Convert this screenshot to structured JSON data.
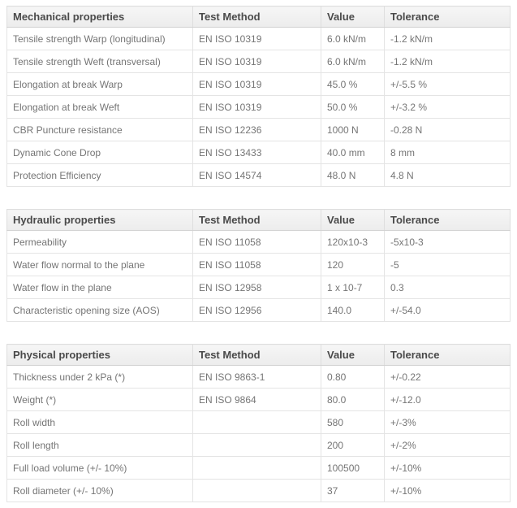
{
  "theme": {
    "page_bg": "#ffffff",
    "header_bg": "#f0f0f0",
    "header_text": "#4a4a4a",
    "body_text": "#757575",
    "border": "#e0e0e0"
  },
  "tables": [
    {
      "title": "Mechanical properties",
      "columns": [
        "Test Method",
        "Value",
        "Tolerance"
      ],
      "rows": [
        {
          "property": "Tensile strength Warp (longitudinal)",
          "method": "EN ISO 10319",
          "value": "6.0 kN/m",
          "tolerance": "-1.2 kN/m"
        },
        {
          "property": "Tensile strength Weft (transversal)",
          "method": "EN ISO 10319",
          "value": "6.0 kN/m",
          "tolerance": "-1.2 kN/m"
        },
        {
          "property": "Elongation at break Warp",
          "method": "EN ISO 10319",
          "value": "45.0 %",
          "tolerance": "+/-5.5 %"
        },
        {
          "property": "Elongation at break Weft",
          "method": "EN ISO 10319",
          "value": "50.0 %",
          "tolerance": "+/-3.2 %"
        },
        {
          "property": "CBR Puncture resistance",
          "method": "EN ISO 12236",
          "value": "1000 N",
          "tolerance": "-0.28 N"
        },
        {
          "property": "Dynamic Cone Drop",
          "method": "EN ISO 13433",
          "value": "40.0 mm",
          "tolerance": "8 mm"
        },
        {
          "property": "Protection Efficiency",
          "method": "EN ISO 14574",
          "value": "48.0 N",
          "tolerance": "4.8 N"
        }
      ]
    },
    {
      "title": "Hydraulic properties",
      "columns": [
        "Test Method",
        "Value",
        "Tolerance"
      ],
      "rows": [
        {
          "property": "Permeability",
          "method": "EN ISO 11058",
          "value": "120x10-3",
          "tolerance": "-5x10-3"
        },
        {
          "property": "Water flow normal to the plane",
          "method": "EN ISO 11058",
          "value": "120",
          "tolerance": "-5"
        },
        {
          "property": "Water flow in the plane",
          "method": "EN ISO 12958",
          "value": "1 x 10-7",
          "tolerance": "0.3"
        },
        {
          "property": "Characteristic opening size (AOS)",
          "method": "EN ISO 12956",
          "value": "140.0",
          "tolerance": "+/-54.0"
        }
      ]
    },
    {
      "title": "Physical properties",
      "columns": [
        "Test Method",
        "Value",
        "Tolerance"
      ],
      "rows": [
        {
          "property": "Thickness under 2 kPa (*)",
          "method": "EN ISO 9863-1",
          "value": "0.80",
          "tolerance": "+/-0.22"
        },
        {
          "property": "Weight (*)",
          "method": "EN ISO 9864",
          "value": "80.0",
          "tolerance": "+/-12.0"
        },
        {
          "property": "Roll width",
          "method": "",
          "value": "580",
          "tolerance": "+/-3%"
        },
        {
          "property": "Roll length",
          "method": "",
          "value": "200",
          "tolerance": "+/-2%"
        },
        {
          "property": "Full load volume (+/- 10%)",
          "method": "",
          "value": "100500",
          "tolerance": "+/-10%"
        },
        {
          "property": "Roll diameter (+/- 10%)",
          "method": "",
          "value": "37",
          "tolerance": "+/-10%"
        }
      ]
    }
  ]
}
